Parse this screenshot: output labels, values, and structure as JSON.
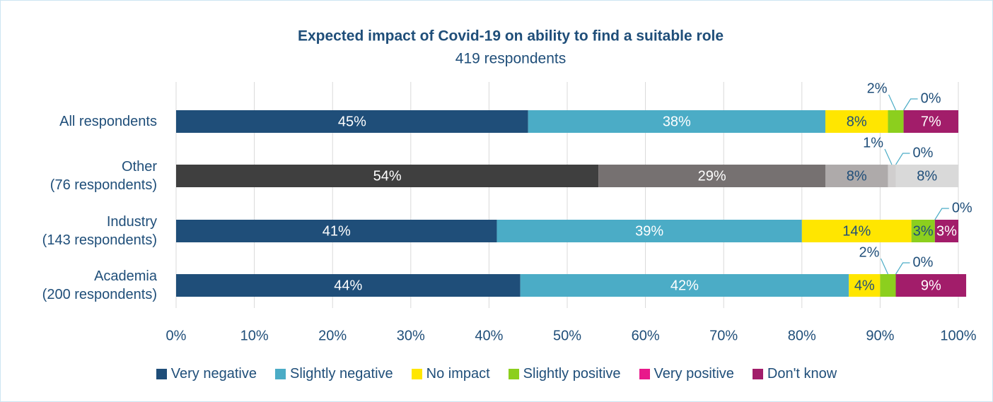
{
  "chart_data": {
    "type": "stacked_barh",
    "title": "Expected impact of Covid-19 on ability to find a suitable role",
    "subtitle": "419 respondents",
    "categories": [
      "All respondents",
      "Other\n(76 respondents)",
      "Industry\n(143 respondents)",
      "Academia\n(200 respondents)"
    ],
    "series": [
      {
        "name": "Very negative",
        "color": "#1f4e79",
        "values": [
          45,
          54,
          41,
          44
        ],
        "value_labels": [
          "45%",
          "54%",
          "41%",
          "44%"
        ]
      },
      {
        "name": "Slightly negative",
        "color": "#4bacc6",
        "values": [
          38,
          29,
          39,
          42
        ],
        "value_labels": [
          "38%",
          "29%",
          "39%",
          "42%"
        ]
      },
      {
        "name": "No impact",
        "color": "#ffe600",
        "values": [
          8,
          8,
          14,
          4
        ],
        "value_labels": [
          "8%",
          "8%",
          "14%",
          "4%"
        ]
      },
      {
        "name": "Slightly positive",
        "color": "#8ccf1e",
        "values": [
          2,
          1,
          3,
          2
        ],
        "value_labels": [
          "2%",
          "1%",
          "3%",
          "2%"
        ]
      },
      {
        "name": "Very positive",
        "color": "#e8198b",
        "values": [
          0,
          0,
          0,
          0
        ],
        "value_labels": [
          "0%",
          "0%",
          "0%",
          "0%"
        ]
      },
      {
        "name": "Don't know",
        "color": "#a21d6a",
        "values": [
          7,
          8,
          3,
          9
        ],
        "value_labels": [
          "7%",
          "8%",
          "3%",
          "9%"
        ]
      }
    ],
    "greyed_category": 1,
    "grey_colors": [
      "#3f3f3f",
      "#767171",
      "#aeaaaa",
      "#d0cece",
      "#bfbfbf",
      "#d9d9d9"
    ],
    "xlim": [
      0,
      100
    ],
    "xticks": [
      {
        "value": 0,
        "label": "0%"
      },
      {
        "value": 10,
        "label": "10%"
      },
      {
        "value": 20,
        "label": "20%"
      },
      {
        "value": 30,
        "label": "30%"
      },
      {
        "value": 40,
        "label": "40%"
      },
      {
        "value": 50,
        "label": "50%"
      },
      {
        "value": 60,
        "label": "60%"
      },
      {
        "value": 70,
        "label": "70%"
      },
      {
        "value": 80,
        "label": "80%"
      },
      {
        "value": 90,
        "label": "90%"
      },
      {
        "value": 100,
        "label": "100%"
      }
    ],
    "grid": true,
    "legend": "bottom"
  }
}
